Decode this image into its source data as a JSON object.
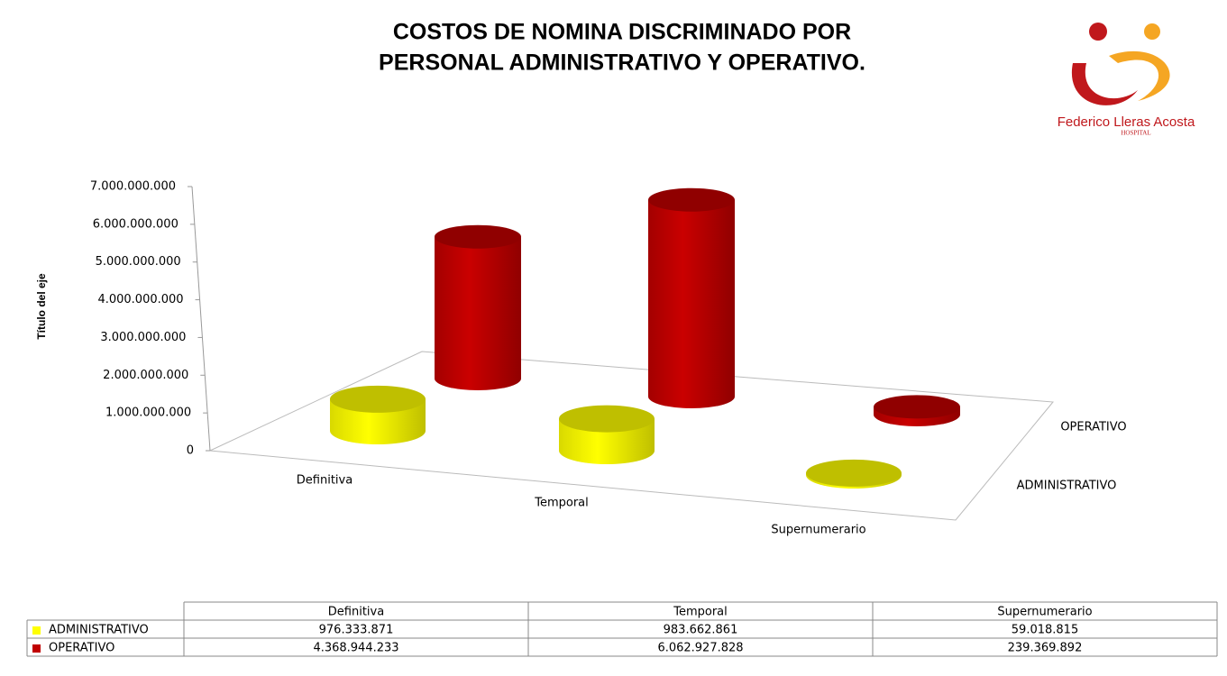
{
  "chart_data": {
    "type": "bar3d",
    "title": [
      "COSTOS DE NOMINA DISCRIMINADO POR",
      "PERSONAL ADMINISTRATIVO Y OPERATIVO."
    ],
    "ylabel": "Título del eje",
    "categories": [
      "Definitiva",
      "Temporal",
      "Supernumerario"
    ],
    "series": [
      {
        "name": "ADMINISTRATIVO",
        "color": "#ffff00",
        "values": [
          976333871,
          983662861,
          59018815
        ],
        "value_labels": [
          "976.333.871",
          "983.662.861",
          "59.018.815"
        ]
      },
      {
        "name": "OPERATIVO",
        "color": "#c00000",
        "values": [
          4368944233,
          6062927828,
          239369892
        ],
        "value_labels": [
          "4.368.944.233",
          "6.062.927.828",
          "239.369.892"
        ]
      }
    ],
    "ylim": [
      0,
      7000000000
    ],
    "yticks": [
      0,
      {
        "value": 1000000000,
        "label": "1.000.000.000"
      },
      {
        "value": 2000000000,
        "label": "2.000.000.000"
      },
      {
        "value": 3000000000,
        "label": "3.000.000.000"
      },
      {
        "value": 4000000000,
        "label": "4.000.000.000"
      },
      {
        "value": 5000000000,
        "label": "5.000.000.000"
      },
      {
        "value": 6000000000,
        "label": "6.000.000.000"
      },
      {
        "value": 7000000000,
        "label": "7.000.000.000"
      }
    ],
    "grid": false
  },
  "logo": {
    "name": "Federico Lleras Acosta",
    "subtitle": "HOSPITAL"
  }
}
